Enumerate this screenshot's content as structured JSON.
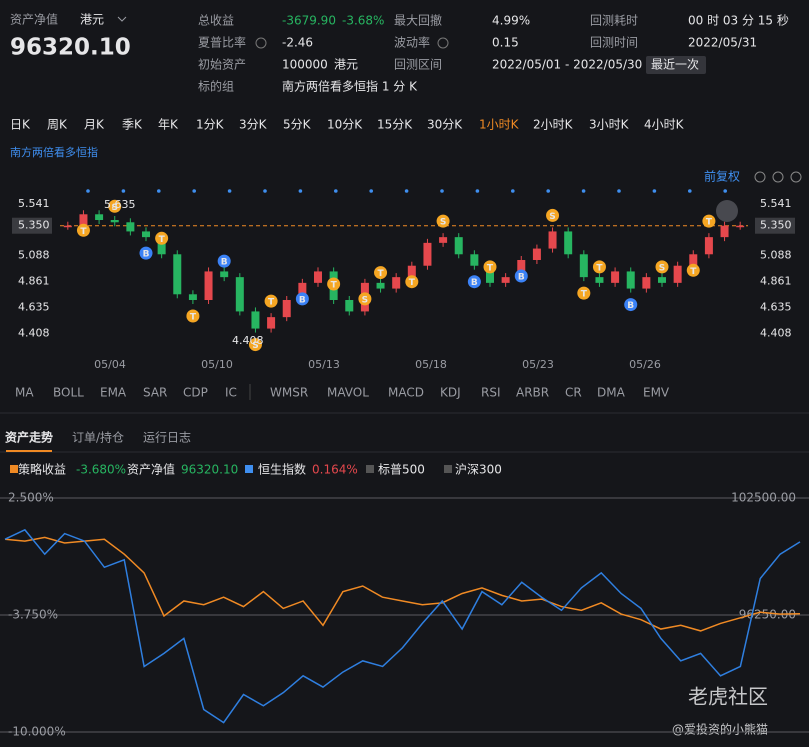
{
  "header": {
    "net_value_label": "资产净值",
    "currency": "港元",
    "net_value": "96320.10"
  },
  "stats": {
    "total_return": {
      "label": "总收益",
      "value": "-3679.90",
      "percent": "-3.68%"
    },
    "max_drawdown": {
      "label": "最大回撤",
      "value": "4.99%"
    },
    "elapsed": {
      "label": "回测耗时",
      "value": "00 时 03 分 15 秒"
    },
    "sharpe": {
      "label": "夏普比率",
      "value": "-2.46"
    },
    "volatility": {
      "label": "波动率",
      "value": "0.15"
    },
    "backtest_time": {
      "label": "回测时间",
      "value": "2022/05/31"
    },
    "initial_assets": {
      "label": "初始资产",
      "value": "100000",
      "unit": "港元"
    },
    "range": {
      "label": "回测区间",
      "value": "2022/05/01 - 2022/05/30",
      "button": "最近一次"
    },
    "target": {
      "label": "标的组",
      "value": "南方两倍看多恒指 1 分 K"
    }
  },
  "periods": [
    "日K",
    "周K",
    "月K",
    "季K",
    "年K",
    "1分K",
    "3分K",
    "5分K",
    "10分K",
    "15分K",
    "30分K",
    "1小时K",
    "2小时K",
    "3小时K",
    "4小时K"
  ],
  "active_period_index": 11,
  "price_chart": {
    "type": "candlestick",
    "symbol": "南方两倍看多恒指",
    "adjust": "前复权",
    "ylim": [
      4.28,
      5.68
    ],
    "yticks": [
      5.541,
      {
        "value": 5.35,
        "label": "5.350"
      },
      5.088,
      4.861,
      4.635,
      4.408
    ],
    "x_labels": [
      "05/04",
      "05/10",
      "05/13",
      "05/18",
      "05/23",
      "05/26"
    ],
    "high_label": "5.635",
    "low_label": "4.408",
    "closes": [
      5.35,
      5.45,
      5.4,
      5.38,
      5.3,
      5.25,
      5.1,
      4.75,
      4.7,
      4.95,
      4.9,
      4.6,
      4.45,
      4.55,
      4.7,
      4.85,
      4.95,
      4.7,
      4.6,
      4.85,
      4.8,
      4.9,
      5.0,
      5.2,
      5.25,
      5.1,
      5.0,
      4.85,
      4.9,
      5.05,
      5.15,
      5.3,
      5.1,
      4.9,
      4.85,
      4.95,
      4.8,
      4.9,
      4.85,
      5.0,
      5.1,
      5.25,
      5.35,
      5.35
    ],
    "trade_markers": [
      "T",
      "S",
      "B",
      "T",
      "T",
      "B",
      "S",
      "T",
      "B",
      "T",
      "S",
      "T",
      "T",
      "S",
      "B",
      "T",
      "B",
      "S",
      "T",
      "T",
      "B",
      "S",
      "T",
      "T"
    ]
  },
  "indicators_main": [
    "MA",
    "BOLL",
    "EMA",
    "SAR",
    "CDP",
    "IC"
  ],
  "indicators_sub": [
    "WMSR",
    "MAVOL",
    "MACD",
    "KDJ",
    "RSI",
    "ARBR",
    "CR",
    "DMA",
    "EMV"
  ],
  "tabs": [
    "资产走势",
    "订单/持仓",
    "运行日志"
  ],
  "legend": [
    {
      "name": "策略收益",
      "value": "-3.680%"
    },
    {
      "name": "资产净值",
      "value": "96320.10"
    },
    {
      "name": "恒生指数",
      "value": "0.164%"
    },
    {
      "name": "标普500"
    },
    {
      "name": "沪深300"
    }
  ],
  "asset_chart": {
    "type": "line",
    "ylim": [
      -10.43,
      2.93
    ],
    "yticks": [
      {
        "value": 2.5,
        "label": "2.500%"
      },
      {
        "value": -3.75,
        "label": "-3.750%"
      },
      {
        "value": -10,
        "label": "-10.000%"
      }
    ],
    "y2lim": [
      89570,
      102930
    ],
    "y2ticks": [
      {
        "value": 102500,
        "label": "102500.00"
      },
      {
        "value": 96250,
        "label": "96250.00"
      }
    ],
    "series": [
      {
        "color": "#f08a24",
        "values": [
          0.3,
          0.2,
          0.4,
          0.1,
          0.2,
          0.3,
          -0.5,
          -1.5,
          -3.8,
          -3.0,
          -3.2,
          -2.8,
          -3.3,
          -2.5,
          -3.4,
          -3.0,
          -4.3,
          -2.5,
          -2.2,
          -2.8,
          -3.0,
          -3.2,
          -3.1,
          -2.6,
          -2.3,
          -2.7,
          -3.0,
          -2.9,
          -3.3,
          -3.5,
          -3.1,
          -3.7,
          -4.0,
          -4.5,
          -4.3,
          -4.6,
          -4.2,
          -3.9,
          -3.6,
          -3.7,
          -3.68
        ]
      },
      {
        "color": "#2f7fe0",
        "values": [
          0.3,
          0.8,
          -0.5,
          0.6,
          0.2,
          -1.2,
          -0.8,
          -6.5,
          -5.8,
          -5.0,
          -8.8,
          -9.5,
          -8.0,
          -8.6,
          -7.9,
          -7.0,
          -7.6,
          -6.8,
          -6.2,
          -6.5,
          -5.5,
          -4.2,
          -3.0,
          -4.5,
          -2.5,
          -3.2,
          -2.0,
          -2.8,
          -3.5,
          -2.3,
          -1.5,
          -2.6,
          -3.4,
          -5.0,
          -6.2,
          -5.8,
          -7.0,
          -6.5,
          -1.8,
          -0.5,
          0.16
        ]
      }
    ]
  },
  "watermark": {
    "brand": "老虎社区",
    "author": "@爱投资的小熊猫"
  }
}
